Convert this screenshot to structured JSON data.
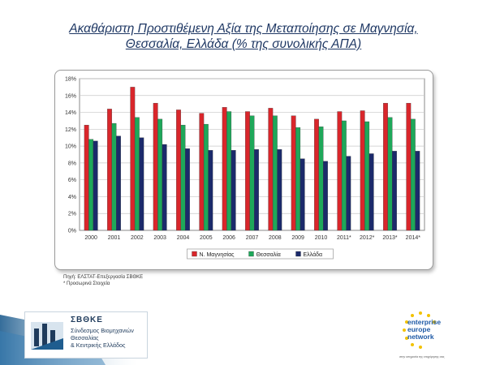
{
  "slide": {
    "title_line1": "Ακαθάριστη Προστιθέμενη Αξία της Μεταποίησης σε Μαγνησία,",
    "title_line2": "Θεσσαλία, Ελλάδα (% της συνολικής ΑΠΑ)"
  },
  "chart_data": {
    "type": "bar",
    "title": "",
    "xlabel": "",
    "ylabel": "",
    "ylim": [
      0,
      18
    ],
    "yticks": [
      0,
      2,
      4,
      6,
      8,
      10,
      12,
      14,
      16,
      18
    ],
    "ytick_labels": [
      "0%",
      "2%",
      "4%",
      "6%",
      "8%",
      "10%",
      "12%",
      "14%",
      "16%",
      "18%"
    ],
    "grid": true,
    "legend_position": "bottom",
    "categories": [
      "2000",
      "2001",
      "2002",
      "2003",
      "2004",
      "2005",
      "2006",
      "2007",
      "2008",
      "2009",
      "2010",
      "2011*",
      "2012*",
      "2013*",
      "2014*"
    ],
    "series": [
      {
        "name": "Ν. Μαγνησίας",
        "color": "#d9262b",
        "values": [
          12.5,
          14.4,
          17.0,
          15.1,
          14.3,
          13.9,
          14.6,
          14.1,
          14.5,
          13.6,
          13.2,
          14.1,
          14.2,
          15.1,
          15.1
        ]
      },
      {
        "name": "Θεσσαλία",
        "color": "#1ea85a",
        "values": [
          10.8,
          12.7,
          13.4,
          13.2,
          12.5,
          12.6,
          14.1,
          13.6,
          13.6,
          12.2,
          12.3,
          13.0,
          12.9,
          13.4,
          13.2
        ]
      },
      {
        "name": "Ελλάδα",
        "color": "#1b2a6b",
        "values": [
          10.6,
          11.2,
          11.0,
          10.2,
          9.7,
          9.5,
          9.5,
          9.6,
          9.6,
          8.5,
          8.2,
          8.8,
          9.1,
          9.4,
          9.4
        ]
      }
    ]
  },
  "source": {
    "line1": "Πηγή: ΕΛΣΤΑΤ-Επεξεργασία ΣΒΘΚΕ",
    "line2": "* Προσωρινά Στοιχεία"
  },
  "logo_left": {
    "name": "ΣΒΘΚΕ",
    "line1": "Σύνδεσμος Βιομηχανιών",
    "line2": "Θεσσαλίας",
    "line3": "& Κεντρικής Ελλάδος"
  },
  "logo_right": {
    "line1": "enterprise",
    "line2": "europe",
    "line3": "network",
    "tagline": "στην υπηρεσία της επιχείρησης σας"
  }
}
